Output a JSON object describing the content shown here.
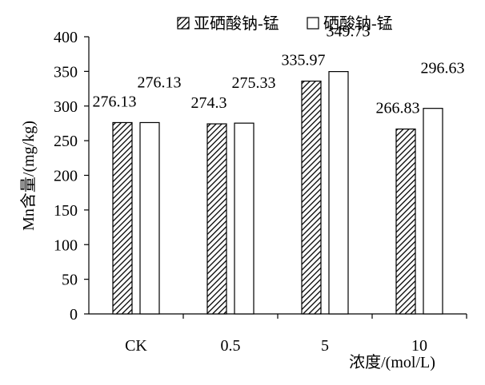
{
  "chart_data": {
    "type": "bar",
    "categories": [
      "CK",
      "0.5",
      "5",
      "10"
    ],
    "series": [
      {
        "name": "亚硒酸钠-锰",
        "values": [
          276.13,
          274.3,
          335.97,
          266.83
        ],
        "labels": [
          "276.13",
          "274.3",
          "335.97",
          "266.83"
        ],
        "fill": "hatched"
      },
      {
        "name": "硒酸钠-锰",
        "values": [
          276.13,
          275.33,
          349.73,
          296.63
        ],
        "labels": [
          "276.13",
          "275.33",
          "349.73",
          "296.63"
        ],
        "fill": "white"
      }
    ],
    "title": "",
    "xlabel": "浓度/(mol/L)",
    "ylabel": "Mn含量/(mg/kg)",
    "ylim": [
      0,
      400
    ],
    "yticks": [
      "0",
      "50",
      "100",
      "150",
      "200",
      "250",
      "300",
      "350",
      "400"
    ],
    "grid": false,
    "legend": "top-right"
  },
  "colors": {
    "bar_outline": "#000000",
    "hatch_line": "#000000",
    "background": "#ffffff"
  }
}
